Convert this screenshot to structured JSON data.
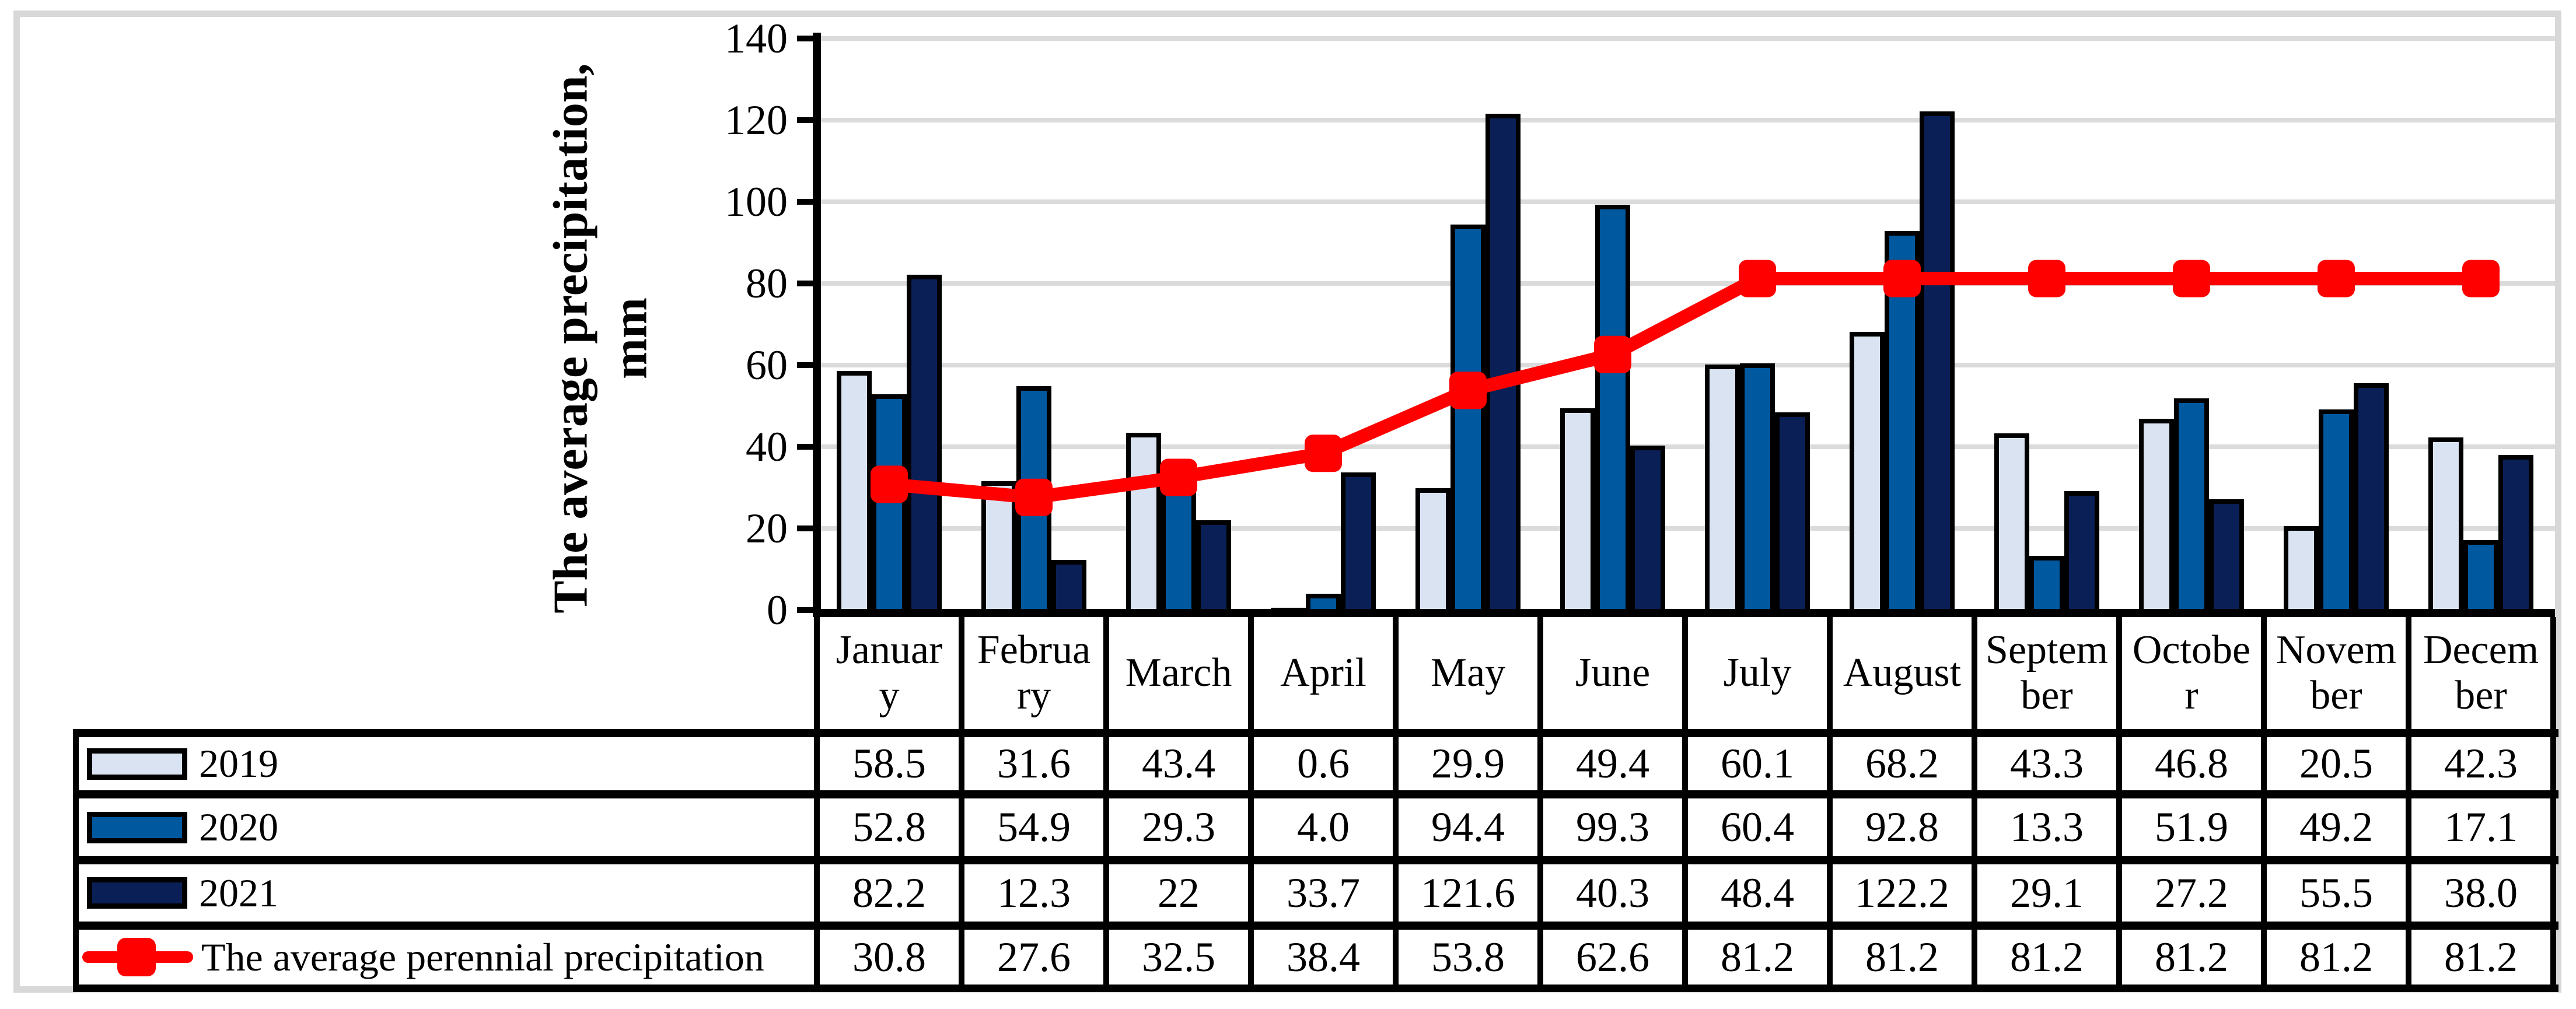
{
  "figure": {
    "y_axis_title_line1": "The average precipitation,",
    "y_axis_title_line2": "mm",
    "y_ticks": [
      0,
      20,
      40,
      60,
      80,
      100,
      120,
      140
    ],
    "colors": {
      "series_2019": "#D9E3F2",
      "series_2020": "#00589E",
      "series_2021": "#0A1F55",
      "line": "#FF0000",
      "gridline": "#DBDBDB",
      "frame": "#D8D8D8",
      "axis": "#000000"
    }
  },
  "chart_data": {
    "type": "bar+line",
    "title": "",
    "xlabel": "",
    "ylabel": "The average precipitation, mm",
    "ylim": [
      0,
      140
    ],
    "ytick_step": 20,
    "grid": true,
    "legend_position": "table-left",
    "categories": [
      "January",
      "February",
      "March",
      "April",
      "May",
      "June",
      "July",
      "August",
      "September",
      "October",
      "November",
      "December"
    ],
    "categories_display": [
      "Januar\ny",
      "Februa\nry",
      "March",
      "April",
      "May",
      "June",
      "July",
      "August",
      "Septem\nber",
      "Octobe\nr",
      "Novem\nber",
      "Decem\nber"
    ],
    "series": [
      {
        "name": "2019",
        "type": "bar",
        "values": [
          58.5,
          31.6,
          43.4,
          0.6,
          29.9,
          49.4,
          60.1,
          68.2,
          43.3,
          46.8,
          20.5,
          42.3
        ]
      },
      {
        "name": "2020",
        "type": "bar",
        "values": [
          52.8,
          54.9,
          29.3,
          4.0,
          94.4,
          99.3,
          60.4,
          92.8,
          13.3,
          51.9,
          49.2,
          17.1
        ]
      },
      {
        "name": "2021",
        "type": "bar",
        "values": [
          82.2,
          12.3,
          22,
          33.7,
          121.6,
          40.3,
          48.4,
          122.2,
          29.1,
          27.2,
          55.5,
          38.0
        ]
      },
      {
        "name": "The average perennial precipitation",
        "type": "line",
        "values": [
          30.8,
          27.6,
          32.5,
          38.4,
          53.8,
          62.6,
          81.2,
          81.2,
          81.2,
          81.2,
          81.2,
          81.2
        ]
      }
    ]
  },
  "table": {
    "row_labels": [
      "2019",
      "2020",
      "2021",
      "The average perennial precipitation"
    ],
    "cells": [
      [
        "58.5",
        "31.6",
        "43.4",
        "0.6",
        "29.9",
        "49.4",
        "60.1",
        "68.2",
        "43.3",
        "46.8",
        "20.5",
        "42.3"
      ],
      [
        "52.8",
        "54.9",
        "29.3",
        "4.0",
        "94.4",
        "99.3",
        "60.4",
        "92.8",
        "13.3",
        "51.9",
        "49.2",
        "17.1"
      ],
      [
        "82.2",
        "12.3",
        "22",
        "33.7",
        "121.6",
        "40.3",
        "48.4",
        "122.2",
        "29.1",
        "27.2",
        "55.5",
        "38.0"
      ],
      [
        "30.8",
        "27.6",
        "32.5",
        "38.4",
        "53.8",
        "62.6",
        "81.2",
        "81.2",
        "81.2",
        "81.2",
        "81.2",
        "81.2"
      ]
    ]
  }
}
